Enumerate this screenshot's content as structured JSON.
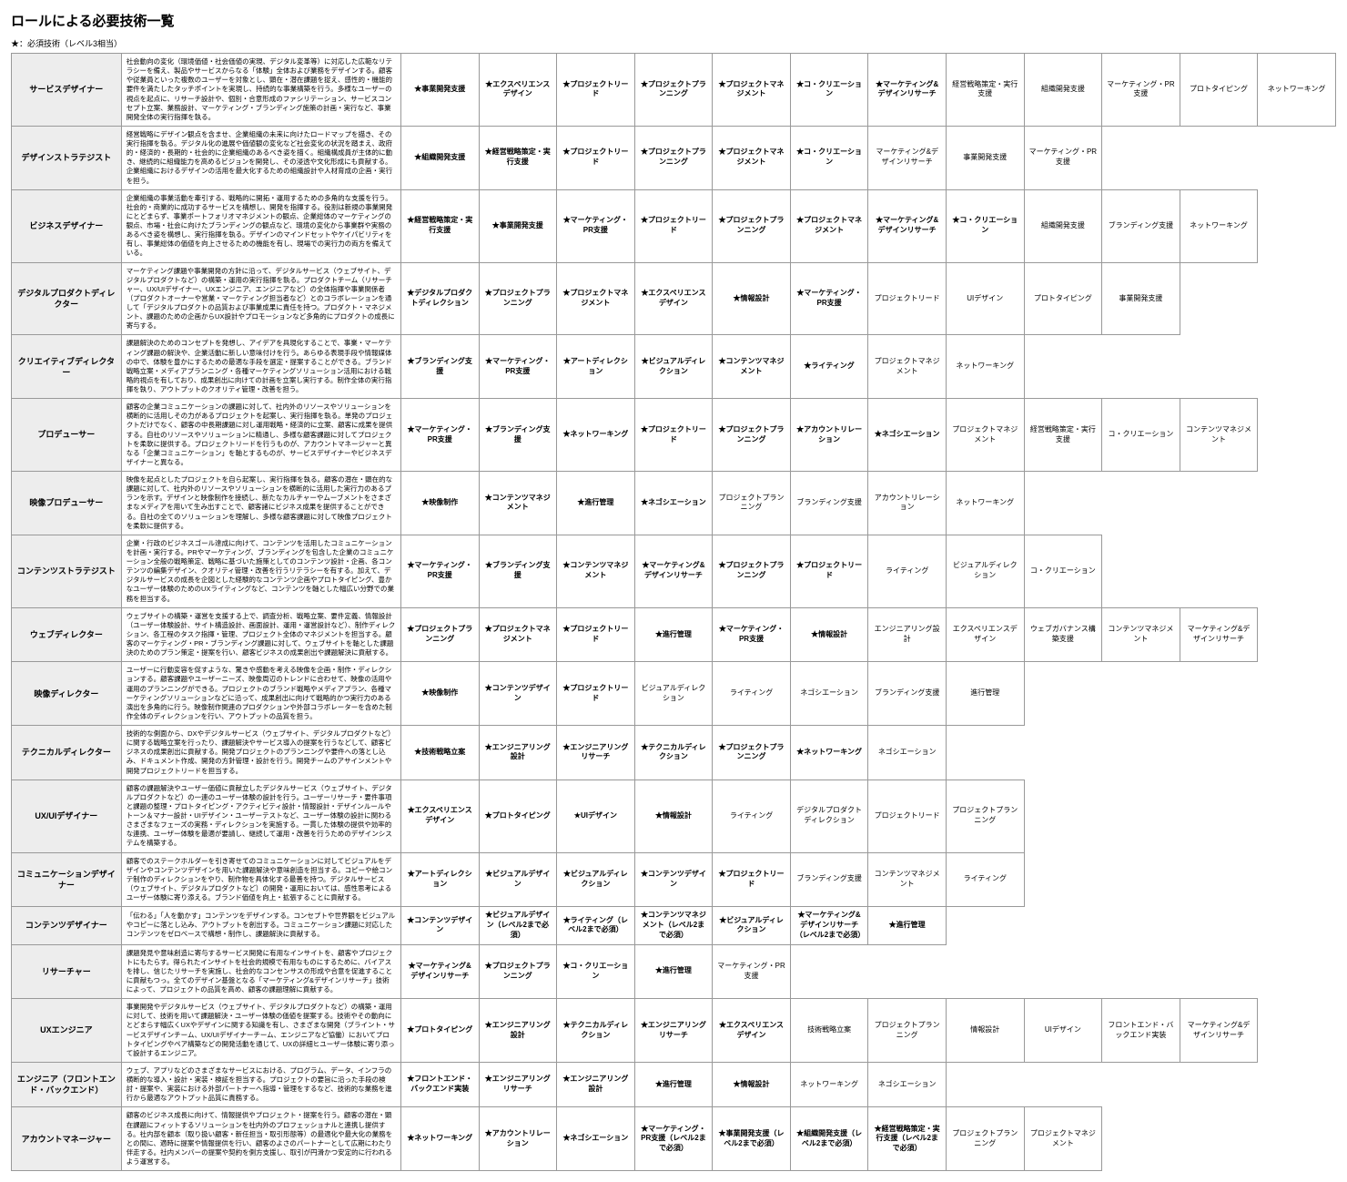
{
  "title": "ロールによる必要技術一覧",
  "legend": "★：必須技術（レベル3相当）",
  "columns": {
    "roleWidth": 110,
    "descWidth": 280,
    "skillWidth": 78,
    "maxSkills": 12
  },
  "rows": [
    {
      "role": "サービスデザイナー",
      "desc": "社会動向の変化（環境価値・社会価値の実現、デジタル変革等）に対応した広範なリテラシーを備え、製品やサービスからなる「体験」全体および業務をデザインする。顧客や従業員といった複数のユーザーを対象とし、顕在・潜在課題を捉え、感性的・機能的要件を満たしたタッチポイントを実現し、持続的な事業構築を行う。多様なユーザーの視点を起点に、リサーチ設計や、個別・合意形成のファシリテーション、サービスコンセプト立案、業務設計、マーケティング・ブランディング施策の計画・実行など、事業開発全体の実行指揮を執る。",
      "skills": [
        {
          "t": "★事業開発支援",
          "r": 1
        },
        {
          "t": "★エクスペリエンスデザイン",
          "r": 1
        },
        {
          "t": "★プロジェクトリード",
          "r": 1
        },
        {
          "t": "★プロジェクトプランニング",
          "r": 1
        },
        {
          "t": "★プロジェクトマネジメント",
          "r": 1
        },
        {
          "t": "★コ・クリエーション",
          "r": 1
        },
        {
          "t": "★マーケティング&デザインリサーチ",
          "r": 1
        },
        {
          "t": "経営戦略策定・実行支援",
          "r": 0
        },
        {
          "t": "組織開発支援",
          "r": 0
        },
        {
          "t": "マーケティング・PR支援",
          "r": 0
        },
        {
          "t": "プロトタイピング",
          "r": 0
        },
        {
          "t": "ネットワーキング",
          "r": 0
        }
      ]
    },
    {
      "role": "デザインストラテジスト",
      "desc": "経営戦略にデザイン観点を含ませ、企業組織の未来に向けたロードマップを描き、その実行指揮を執る。デジタル化の進展や価値観の変化など社会変化の状況を踏まえ、政府的・経済的・長期的・社会的に企業組織のあるべき姿を描く。組織構成員が主体的に動き、継続的に組織能力を高めるビジョンを開発し、その浸透や文化形成にも貢献する。企業組織におけるデザインの活用を最大化するための組織設計や人材育成の企画・実行を担う。",
      "skills": [
        {
          "t": "★組織開発支援",
          "r": 1
        },
        {
          "t": "★経営戦略策定・実行支援",
          "r": 1
        },
        {
          "t": "★プロジェクトリード",
          "r": 1
        },
        {
          "t": "★プロジェクトプランニング",
          "r": 1
        },
        {
          "t": "★プロジェクトマネジメント",
          "r": 1
        },
        {
          "t": "★コ・クリエーション",
          "r": 1
        },
        {
          "t": "マーケティング&デザインリサーチ",
          "r": 0
        },
        {
          "t": "事業開発支援",
          "r": 0
        },
        {
          "t": "マーケティング・PR支援",
          "r": 0
        }
      ]
    },
    {
      "role": "ビジネスデザイナー",
      "desc": "企業組織の事業活動を牽引する、戦略的に開拓・運用するための多角的な支援を行う。社会的・商業的に成功するサービスを構想し、開発を指揮する。役割は新規の事業開発にとどまらず、事業ポートフォリオマネジメントの観点、企業総体のマーケティングの観点、市場・社会に向けたブランディングの観点など、環境の変化から事業群や実務のあるべき姿を構想し、実行指揮を執る。デザインのマインドセットやケイパビリティを有し、事業総体の価値を向上させるための機能を有し、現場での実行力の両方を備えている。",
      "skills": [
        {
          "t": "★経営戦略策定・実行支援",
          "r": 1
        },
        {
          "t": "★事業開発支援",
          "r": 1
        },
        {
          "t": "★マーケティング・PR支援",
          "r": 1
        },
        {
          "t": "★プロジェクトリード",
          "r": 1
        },
        {
          "t": "★プロジェクトプランニング",
          "r": 1
        },
        {
          "t": "★プロジェクトマネジメント",
          "r": 1
        },
        {
          "t": "★マーケティング&デザインリサーチ",
          "r": 1
        },
        {
          "t": "★コ・クリエーション",
          "r": 1
        },
        {
          "t": "組織開発支援",
          "r": 0
        },
        {
          "t": "ブランディング支援",
          "r": 0
        },
        {
          "t": "ネットワーキング",
          "r": 0
        }
      ]
    },
    {
      "role": "デジタルプロダクトディレクター",
      "desc": "マーケティング課題や事業開発の方針に沿って、デジタルサービス（ウェブサイト、デジタルプロダクトなど）の構築・運用の実行指揮を執る。プロダクトチーム（リサーチャー、UX/UIデザイナー、UXエンジニア、エンジニアなど）の全体指揮や事業関係者（プロダクトオーナーや営業・マーケティング担当者など）とのコラボレーションを通して「デジタルプロダクトの品質および事業成果に責任を持つ。プロダクト・マネジメント、課題のための企画からUX設計やプロモーションなど多角的にプロダクトの成長に寄与する。",
      "skills": [
        {
          "t": "★デジタルプロダクトディレクション",
          "r": 1
        },
        {
          "t": "★プロジェクトプランニング",
          "r": 1
        },
        {
          "t": "★プロジェクトマネジメント",
          "r": 1
        },
        {
          "t": "★エクスペリエンスデザイン",
          "r": 1
        },
        {
          "t": "★情報設計",
          "r": 1
        },
        {
          "t": "★マーケティング・PR支援",
          "r": 1
        },
        {
          "t": "プロジェクトリード",
          "r": 0
        },
        {
          "t": "UIデザイン",
          "r": 0
        },
        {
          "t": "プロトタイピング",
          "r": 0
        },
        {
          "t": "事業開発支援",
          "r": 0
        }
      ]
    },
    {
      "role": "クリエイティブディレクター",
      "desc": "課題解決のためのコンセプトを発想し、アイデアを具現化することで、事業・マーケティング課題の解決や、企業活動に新しい意味付けを行う。あらゆる表現手段や情報媒体の中で、体験を豊かにするための最適な手段を選定・提案することができる。ブランド戦略立案・メディアプランニング・各種マーケティングソリューション活用における戦略的視点を有しており、成果創出に向けての計画を立案し実行する。制作全体の実行指揮を執り、アウトプットのクオリティ管理・改善を担う。",
      "skills": [
        {
          "t": "★ブランディング支援",
          "r": 1
        },
        {
          "t": "★マーケティング・PR支援",
          "r": 1
        },
        {
          "t": "★アートディレクション",
          "r": 1
        },
        {
          "t": "★ビジュアルディレクション",
          "r": 1
        },
        {
          "t": "★コンテンツマネジメント",
          "r": 1
        },
        {
          "t": "★ライティング",
          "r": 1
        },
        {
          "t": "プロジェクトマネジメント",
          "r": 0
        },
        {
          "t": "ネットワーキング",
          "r": 0
        }
      ]
    },
    {
      "role": "プロデューサー",
      "desc": "顧客の企業コミュニケーションの課題に対して、社内外のリソースやソリューションを横断的に活用しその力があるプロジェクトを起案し、実行指揮を執る。単発のプロジェクトだけでなく、顧客の中長期課題に対し運用戦略・経済的に立案、顧客に成果を提供する。自社のリソースやソリューションに精通し、多様な顧客課題に対してプロジェクトを柔軟に提供する。プロジェクトリードを行うものが、アカウントマネージャーと異なる「企業コミュニケーション」を軸とするものが、サービスデザイナーやビジネスデザイナーと異なる。",
      "skills": [
        {
          "t": "★マーケティング・PR支援",
          "r": 1
        },
        {
          "t": "★ブランディング支援",
          "r": 1
        },
        {
          "t": "★ネットワーキング",
          "r": 1
        },
        {
          "t": "★プロジェクトリード",
          "r": 1
        },
        {
          "t": "★プロジェクトプランニング",
          "r": 1
        },
        {
          "t": "★アカウントリレーション",
          "r": 1
        },
        {
          "t": "★ネゴシエーション",
          "r": 1
        },
        {
          "t": "プロジェクトマネジメント",
          "r": 0
        },
        {
          "t": "経営戦略策定・実行支援",
          "r": 0
        },
        {
          "t": "コ・クリエーション",
          "r": 0
        },
        {
          "t": "コンテンツマネジメント",
          "r": 0
        }
      ]
    },
    {
      "role": "映像プロデューサー",
      "desc": "映像を起点としたプロジェクトを自ら起案し、実行指揮を執る。顧客の潜在・顕在的な課題に対して、社内外のリソースやソリューションを横断的に活用した実行力のあるプランを示す。デザインと映像制作を接続し、新たなカルチャーやムーブメントをさまざまなメディアを用いて生み出すことで、顧客諸にビジネス成果を提供することができる。自社の全てのソリューションを理解し、多様な顧客課題に対して映像プロジェクトを柔軟に提供する。",
      "skills": [
        {
          "t": "★映像制作",
          "r": 1
        },
        {
          "t": "★コンテンツマネジメント",
          "r": 1
        },
        {
          "t": "★進行管理",
          "r": 1
        },
        {
          "t": "★ネゴシエーション",
          "r": 1
        },
        {
          "t": "プロジェクトプランニング",
          "r": 0
        },
        {
          "t": "ブランディング支援",
          "r": 0
        },
        {
          "t": "アカウントリレーション",
          "r": 0
        },
        {
          "t": "ネットワーキング",
          "r": 0
        }
      ]
    },
    {
      "role": "コンテンツストラテジスト",
      "desc": "企業・行政のビジネスゴール達成に向けて、コンテンツを活用したコミュニケーションを計画・実行する。PRやマーケティング、ブランディングを包含した企業のコミュニケーション全般の戦略策定、戦略に基づいた施策としてのコンテンツ設計・企画、各コンテンツの編集デザイン、クオリティ管理・改善を行うリテラシーを有する。加えて、デジタルサービスの成長を企図とした経験的なコンテンツ企画やプロトタイピング、豊かなユーザー体験のためのUXライティングなど、コンテンツを軸とした幅広い分野での業務を担当する。",
      "skills": [
        {
          "t": "★マーケティング・PR支援",
          "r": 1
        },
        {
          "t": "★ブランディング支援",
          "r": 1
        },
        {
          "t": "★コンテンツマネジメント",
          "r": 1
        },
        {
          "t": "★マーケティング&デザインリサーチ",
          "r": 1
        },
        {
          "t": "★プロジェクトプランニング",
          "r": 1
        },
        {
          "t": "★プロジェクトリード",
          "r": 1
        },
        {
          "t": "ライティング",
          "r": 0
        },
        {
          "t": "ビジュアルディレクション",
          "r": 0
        },
        {
          "t": "コ・クリエーション",
          "r": 0
        }
      ]
    },
    {
      "role": "ウェブディレクター",
      "desc": "ウェブサイトの構築・運営を支援する上で、調査分析、戦略立案、要件定義、情報設計（ユーザー体験設計、サイト構造設計、画面設計、運用・運営設計など）、制作ディレクション、各工程のタスク指揮・管理、プロジェクト全体のマネジメントを担当する。顧客のマーケティング・PR・ブランディング課題に対して、ウェブサイトを軸とした課題決のためのプラン策定・提案を行い、顧客ビジネスの成果創出や課題解決に貢献する。",
      "skills": [
        {
          "t": "★プロジェクトプランニング",
          "r": 1
        },
        {
          "t": "★プロジェクトマネジメント",
          "r": 1
        },
        {
          "t": "★プロジェクトリード",
          "r": 1
        },
        {
          "t": "★進行管理",
          "r": 1
        },
        {
          "t": "★マーケティング・PR支援",
          "r": 1
        },
        {
          "t": "★情報設計",
          "r": 1
        },
        {
          "t": "エンジニアリング設計",
          "r": 0
        },
        {
          "t": "エクスペリエンスデザイン",
          "r": 0
        },
        {
          "t": "ウェブガバナンス構築支援",
          "r": 0
        },
        {
          "t": "コンテンツマネジメント",
          "r": 0
        },
        {
          "t": "マーケティング&デザインリサーチ",
          "r": 0
        }
      ]
    },
    {
      "role": "映像ディレクター",
      "desc": "ユーザーに行動変容を促すような、驚きや感動を考える映像を企画・制作・ディレクションする。顧客課題やユーザーニーズ、映像周辺のトレンドに合わせて、映像の活用や運用のプランニングができる。プロジェクトのブランド戦略やメディアプラン、各種マーケティングソリューションなどに沿って、成果創出に向けて戦略的かつ実行力のある演出を多角的に行う。映像制作関連のプロダクションや外部コラボレーターを含めた制作全体のディレクションを行い、アウトプットの品質を担う。",
      "skills": [
        {
          "t": "★映像制作",
          "r": 1
        },
        {
          "t": "★コンテンツデザイン",
          "r": 1
        },
        {
          "t": "★プロジェクトリード",
          "r": 1
        },
        {
          "t": "ビジュアルディレクション",
          "r": 0
        },
        {
          "t": "ライティング",
          "r": 0
        },
        {
          "t": "ネゴシエーション",
          "r": 0
        },
        {
          "t": "ブランディング支援",
          "r": 0
        },
        {
          "t": "進行管理",
          "r": 0
        }
      ]
    },
    {
      "role": "テクニカルディレクター",
      "desc": "技術的な側面から、DXやデジタルサービス（ウェブサイト、デジタルプロダクトなど）に関する戦略立案を行ったり、課題解決やサービス導入の提案を行うなどして、顧客ビジネスの成果創出に貢献する。開発プロジェクトのプランニングや要件への落とし込み、ドキュメント作成、開発の方針管理・設計を行う。開発チームのアサインメントや開発プロジェクトリードを担当する。",
      "skills": [
        {
          "t": "★技術戦略立案",
          "r": 1
        },
        {
          "t": "★エンジニアリング設計",
          "r": 1
        },
        {
          "t": "★エンジニアリングリサーチ",
          "r": 1
        },
        {
          "t": "★テクニカルディレクション",
          "r": 1
        },
        {
          "t": "★プロジェクトプランニング",
          "r": 1
        },
        {
          "t": "★ネットワーキング",
          "r": 1
        },
        {
          "t": "ネゴシエーション",
          "r": 0
        }
      ]
    },
    {
      "role": "UX/UIデザイナー",
      "desc": "顧客の課題解決やユーザー価値に貢献立したデジタルサービス（ウェブサイト、デジタルプロダクトなど）の一連のユーザー体験の設計を行う。ユーザーリサーチ・要件事項と課題の整理・プロトタイピング・アクティビティ設計・情報設計・デザインルールやトーン＆マナー設計・UIデザイン・ユーザーテストなど、ユーザー体験の設計に関わるさまざまなフェーズの実務・ディレクションを実施する。一貫した体験の提供や効率的な連携、ユーザー体験を最適が要請し、継続して運用・改善を行うためのデザインシステムを構築する。",
      "skills": [
        {
          "t": "★エクスペリエンスデザイン",
          "r": 1
        },
        {
          "t": "★プロトタイピング",
          "r": 1
        },
        {
          "t": "★UIデザイン",
          "r": 1
        },
        {
          "t": "★情報設計",
          "r": 1
        },
        {
          "t": "ライティング",
          "r": 0
        },
        {
          "t": "デジタルプロダクトディレクション",
          "r": 0
        },
        {
          "t": "プロジェクトリード",
          "r": 0
        },
        {
          "t": "プロジェクトプランニング",
          "r": 0
        }
      ]
    },
    {
      "role": "コミュニケーションデザイナー",
      "desc": "顧客でのステークホルダーを引き寄せてのコミュニケーションに対してビジュアルをデザインやコンテンツデザインを用いた課題解決や意味創造を担当する。コピーや絵コンテ制作のディレクションをやり、制作物を具体化する最善を持つ。デジタルサービス（ウェブサイト、デジタルプロダクトなど）の開発・運用においては、感性思考によるユーザー体験に寄り添える。ブランド価値を向上・拡張することに貢献する。",
      "skills": [
        {
          "t": "★アートディレクション",
          "r": 1
        },
        {
          "t": "★ビジュアルデザイン",
          "r": 1
        },
        {
          "t": "★ビジュアルディレクション",
          "r": 1
        },
        {
          "t": "★コンテンツデザイン",
          "r": 1
        },
        {
          "t": "★プロジェクトリード",
          "r": 1
        },
        {
          "t": "ブランディング支援",
          "r": 0
        },
        {
          "t": "コンテンツマネジメント",
          "r": 0
        },
        {
          "t": "ライティング",
          "r": 0
        }
      ]
    },
    {
      "role": "コンテンツデザイナー",
      "desc": "「伝わる」「人を動かす」コンテンツをデザインする。コンセプトや世界観をビジュアルやコピーに落とし込み、アウトプットを創出する。コミュニケーション課題に対応したコンテンツをゼロベースで構想・制作し、課題解決に貢献する。",
      "skills": [
        {
          "t": "★コンテンツデザイン",
          "r": 1
        },
        {
          "t": "★ビジュアルデザイン（レベル2まで必須）",
          "r": 1
        },
        {
          "t": "★ライティング（レベル2まで必須）",
          "r": 1
        },
        {
          "t": "★コンテンツマネジメント（レベル2まで必須）",
          "r": 1
        },
        {
          "t": "★ビジュアルディレクション",
          "r": 1
        },
        {
          "t": "★マーケティング&デザインリサーチ（レベル2まで必須）",
          "r": 1
        },
        {
          "t": "★進行管理",
          "r": 1
        }
      ]
    },
    {
      "role": "リサーチャー",
      "desc": "課題発見や意味創造に寄与するサービス開発に有用なインサイトを、顧客やプロジェクトにもたらす。得られたインサイトを社会的規模で有用なものにするために、バイアスを排し、信じたリサーチを実施し、社会的なコンセンサスの形成や合意を促進することに貢献もつっ。全てのデザイン基盤となる「マーケティング&デザインリサーチ」技術によって、プロジェクトの品質を高め、顧客の課題理解に貢献する。",
      "skills": [
        {
          "t": "★マーケティング&デザインリサーチ",
          "r": 1
        },
        {
          "t": "★プロジェクトプランニング",
          "r": 1
        },
        {
          "t": "★コ・クリエーション",
          "r": 1
        },
        {
          "t": "★進行管理",
          "r": 1
        },
        {
          "t": "マーケティング・PR支援",
          "r": 0
        }
      ]
    },
    {
      "role": "UXエンジニア",
      "desc": "事業開発やデジタルサービス（ウェブサイト、デジタルプロダクトなど）の構築・運用に対して、技術を用いて課題解決・ユーザー体験の価値を提案する。技術やその動向にとどまらす幅広くUXやデザインに関する知識を有し、さまざまな開発（ブライント・サービスデザインチーム、UX/UIデザイナーチーム、エンジニアなど協働）においてプロトタイピングやペア構築などの開発活動を通じて、UXの詳細ヒユーザー体験に寄り添って設計するエンジニア。",
      "skills": [
        {
          "t": "★プロトタイピング",
          "r": 1
        },
        {
          "t": "★エンジニアリング設計",
          "r": 1
        },
        {
          "t": "★テクニカルディレクション",
          "r": 1
        },
        {
          "t": "★エンジニアリングリサーチ",
          "r": 1
        },
        {
          "t": "★エクスペリエンスデザイン",
          "r": 1
        },
        {
          "t": "技術戦略立案",
          "r": 0
        },
        {
          "t": "プロジェクトプランニング",
          "r": 0
        },
        {
          "t": "情報設計",
          "r": 0
        },
        {
          "t": "UIデザイン",
          "r": 0
        },
        {
          "t": "フロントエンド・バックエンド実装",
          "r": 0
        },
        {
          "t": "マーケティング&デザインリサーチ",
          "r": 0
        }
      ]
    },
    {
      "role": "エンジニア（フロントエンド・バックエンド）",
      "desc": "ウェブ、アプリなどのさまざまなサービスにおける、プログラム、データ、インフラの横断的な導入・設計・実装・検証を担当する。プロジェクトの要旨に沿った手段の検討・提案や、実装における外部パートナーへ指導・管理をするなど、技術的な業務を進行から最適なアウトプット品質に責務する。",
      "skills": [
        {
          "t": "★フロントエンド・バックエンド実装",
          "r": 1
        },
        {
          "t": "★エンジニアリングリサーチ",
          "r": 1
        },
        {
          "t": "★エンジニアリング設計",
          "r": 1
        },
        {
          "t": "★進行管理",
          "r": 1
        },
        {
          "t": "★情報設計",
          "r": 1
        },
        {
          "t": "ネットワーキング",
          "r": 0
        },
        {
          "t": "ネゴシエーション",
          "r": 0
        }
      ]
    },
    {
      "role": "アカウントマネージャー",
      "desc": "顧客のビジネス成長に向けて、情報提供やプロジェクト・提案を行う。顧客の潜在・顕在課題にフィットするソリューションを社内外のプロフェッショナルと連携し提供する。社内部を顧本（取り扱い顧客・新任担当・取引形態等）の最適化や最大化の業務をとの間に、適時に提案や情報提供を行い、顧客のよさのパートナーとして広期にわたり伴走する。社内メンバーの提案や契約を側方支援し、取引が円滑かつ安定的に行われるよう運営する。",
      "skills": [
        {
          "t": "★ネットワーキング",
          "r": 1
        },
        {
          "t": "★アカウントリレーション",
          "r": 1
        },
        {
          "t": "★ネゴシエーション",
          "r": 1
        },
        {
          "t": "★マーケティング・PR支援（レベル2まで必須）",
          "r": 1
        },
        {
          "t": "★事業開発支援（レベル2まで必須）",
          "r": 1
        },
        {
          "t": "★組織開発支援（レベル2まで必須）",
          "r": 1
        },
        {
          "t": "★経営戦略策定・実行支援（レベル2まで必須）",
          "r": 1
        },
        {
          "t": "プロジェクトプランニング",
          "r": 0
        },
        {
          "t": "プロジェクトマネジメント",
          "r": 0
        }
      ]
    }
  ]
}
